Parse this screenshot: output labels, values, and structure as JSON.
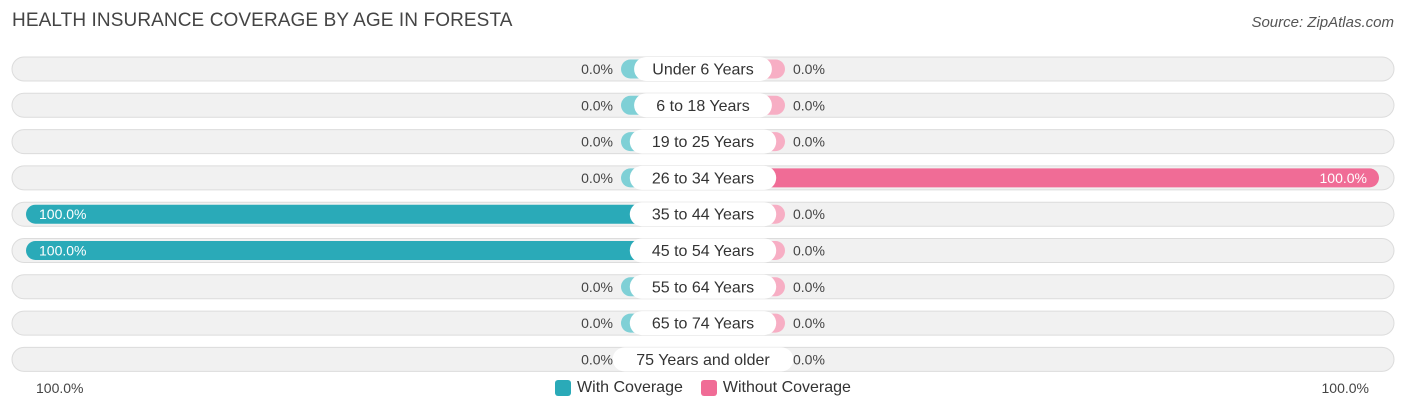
{
  "header": {
    "title": "HEALTH INSURANCE COVERAGE BY AGE IN FORESTA",
    "source": "Source: ZipAtlas.com"
  },
  "colors": {
    "with_coverage": "#2aaab8",
    "with_coverage_light": "#7fd0d6",
    "without_coverage": "#f06c96",
    "without_coverage_light": "#f7aec4",
    "row_background": "#f1f1f1"
  },
  "axis": {
    "left_label": "100.0%",
    "right_label": "100.0%"
  },
  "legend": {
    "with_label": "With Coverage",
    "without_label": "Without Coverage"
  },
  "chart_data": {
    "type": "bar",
    "orientation": "horizontal-diverging",
    "title": "HEALTH INSURANCE COVERAGE BY AGE IN FORESTA",
    "categories": [
      "Under 6 Years",
      "6 to 18 Years",
      "19 to 25 Years",
      "26 to 34 Years",
      "35 to 44 Years",
      "45 to 54 Years",
      "55 to 64 Years",
      "65 to 74 Years",
      "75 Years and older"
    ],
    "series": [
      {
        "name": "With Coverage",
        "values": [
          0.0,
          0.0,
          0.0,
          0.0,
          100.0,
          100.0,
          0.0,
          0.0,
          0.0
        ],
        "labels": [
          "0.0%",
          "0.0%",
          "0.0%",
          "0.0%",
          "100.0%",
          "100.0%",
          "0.0%",
          "0.0%",
          "0.0%"
        ]
      },
      {
        "name": "Without Coverage",
        "values": [
          0.0,
          0.0,
          0.0,
          100.0,
          0.0,
          0.0,
          0.0,
          0.0,
          0.0
        ],
        "labels": [
          "0.0%",
          "0.0%",
          "0.0%",
          "100.0%",
          "0.0%",
          "0.0%",
          "0.0%",
          "0.0%",
          "0.0%"
        ]
      }
    ],
    "xlim": [
      -100,
      100
    ],
    "legend_position": "bottom-center",
    "grid": false
  }
}
